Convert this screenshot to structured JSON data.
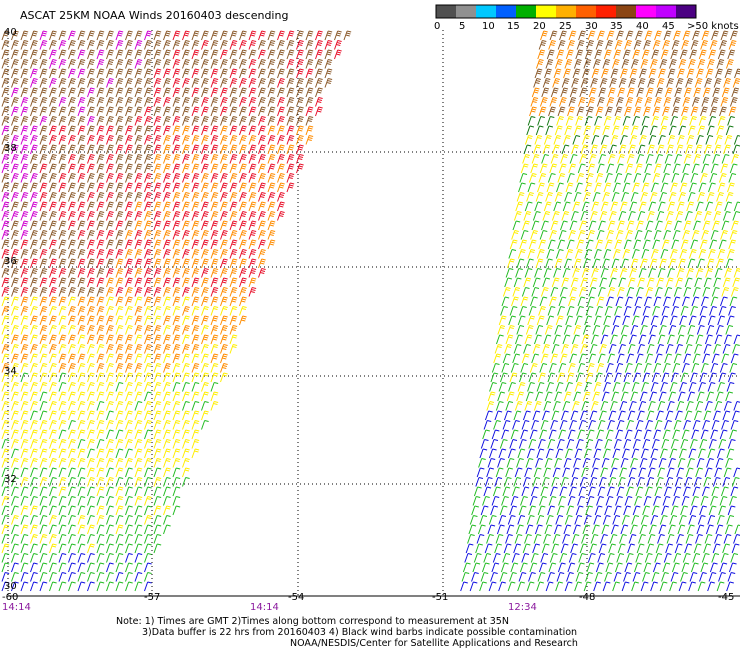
{
  "map": {
    "title": "ASCAT 25KM NOAA Winds 20160403 descending",
    "lat_labels": [
      "40",
      "38",
      "36",
      "34",
      "32",
      "30"
    ],
    "lon_labels": [
      "-60",
      "-57",
      "-54",
      "-51",
      "-48",
      "-45"
    ],
    "swath_times": [
      "14:14",
      "14:14",
      "12:34"
    ]
  },
  "legend": {
    "ticks": [
      "0",
      "5",
      "10",
      "15",
      "20",
      "25",
      "30",
      "35",
      "40",
      "45",
      ">50 knots"
    ],
    "colors": [
      "#505050",
      "#909090",
      "#00c8ff",
      "#0060ff",
      "#00b000",
      "#ffff00",
      "#ffb000",
      "#ff6000",
      "#ff2000",
      "#8b4513",
      "#ff00ff",
      "#c000ff",
      "#4b0082"
    ]
  },
  "wind_color_scale": {
    "blue": "#1010e0",
    "green": "#22bb22",
    "dark_green": "#117711",
    "yellow": "#ffee00",
    "orange": "#ff8c00",
    "red": "#e8102a",
    "brown": "#8b5a2b",
    "magenta": "#d000d0"
  },
  "notes": {
    "line1": "Note: 1) Times are GMT 2)Times along bottom correspond to measurement at 35N",
    "line2": "3)Data buffer is 22 hrs from 20160403 4) Black wind barbs indicate possible contamination",
    "line3": "NOAA/NESDIS/Center for Satellite Applications and Research"
  }
}
